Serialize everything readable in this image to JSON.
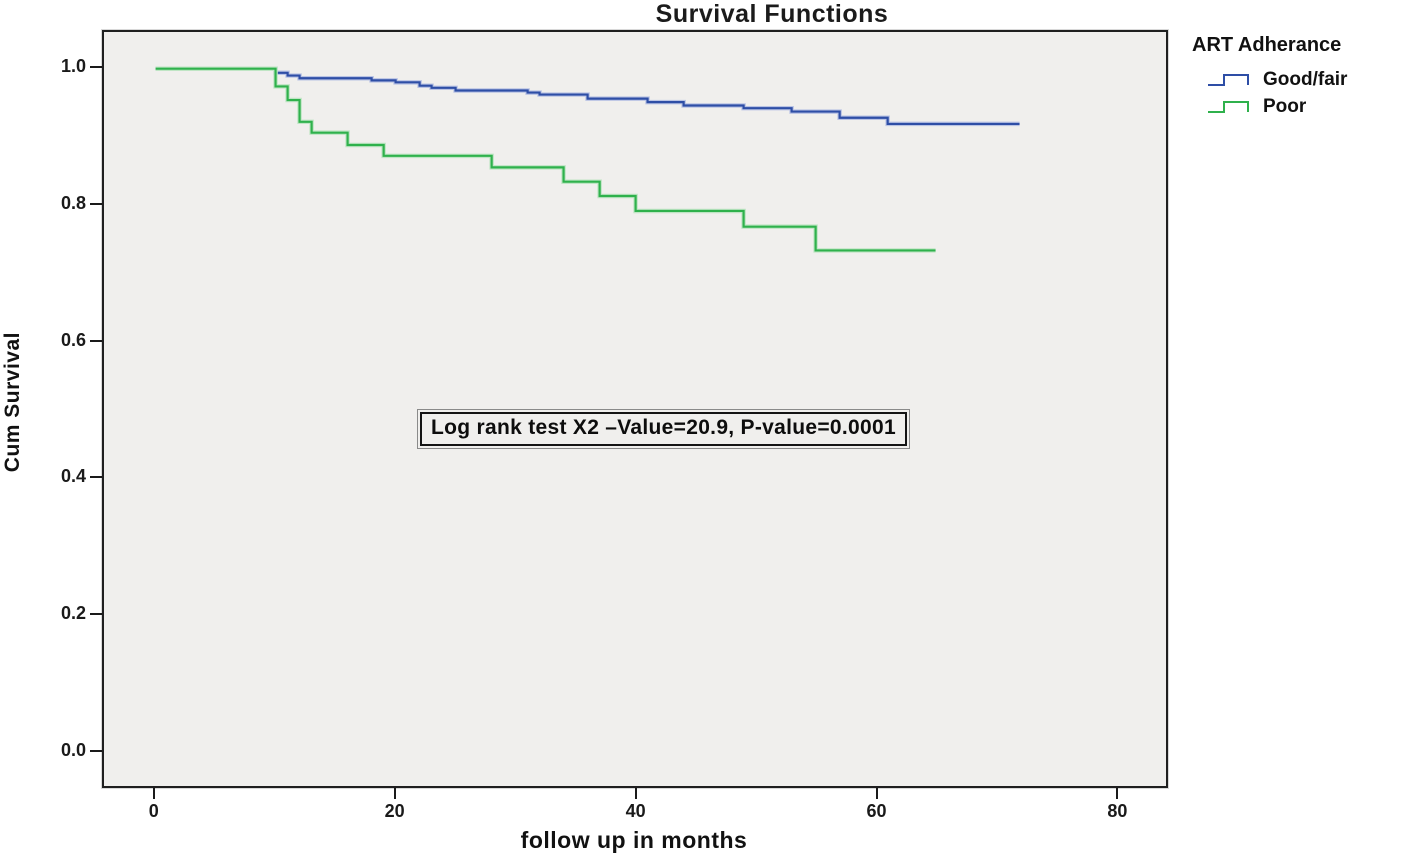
{
  "chart_data": {
    "type": "line",
    "subtype": "kaplan-meier-step",
    "title": "Survival Functions",
    "xlabel": "follow up in months",
    "ylabel": "Cum Survival",
    "x_ticks": [
      0,
      20,
      40,
      60,
      80
    ],
    "y_ticks": [
      0.0,
      0.2,
      0.4,
      0.6,
      0.8,
      1.0
    ],
    "xlim": [
      -4.3,
      84.2
    ],
    "ylim": [
      -0.054,
      1.054
    ],
    "grid": false,
    "plot_background": "#f0efed",
    "annotation": "Log rank test X2 –Value=20.9, P-value=0.0001",
    "legend": {
      "title": "ART Adherance",
      "position": "right",
      "entries": [
        {
          "name": "Good/fair",
          "color": "#2e4ea6"
        },
        {
          "name": "Poor",
          "color": "#2fb14c"
        }
      ]
    },
    "series": [
      {
        "name": "Good/fair",
        "color": "#2e4ea6",
        "halo": "#b9c3e4",
        "points": [
          [
            0,
            1.0
          ],
          [
            10,
            0.994
          ],
          [
            11,
            0.99
          ],
          [
            12,
            0.986
          ],
          [
            18,
            0.983
          ],
          [
            20,
            0.98
          ],
          [
            22,
            0.975
          ],
          [
            23,
            0.972
          ],
          [
            25,
            0.968
          ],
          [
            31,
            0.965
          ],
          [
            32,
            0.962
          ],
          [
            36,
            0.956
          ],
          [
            41,
            0.951
          ],
          [
            44,
            0.946
          ],
          [
            49,
            0.942
          ],
          [
            53,
            0.937
          ],
          [
            57,
            0.928
          ],
          [
            61,
            0.919
          ],
          [
            72,
            0.919
          ]
        ]
      },
      {
        "name": "Poor",
        "color": "#2fb14c",
        "halo": "#bfe5c4",
        "points": [
          [
            0,
            1.0
          ],
          [
            10,
            0.974
          ],
          [
            11,
            0.954
          ],
          [
            12,
            0.922
          ],
          [
            13,
            0.906
          ],
          [
            16,
            0.888
          ],
          [
            19,
            0.872
          ],
          [
            28,
            0.855
          ],
          [
            34,
            0.834
          ],
          [
            37,
            0.813
          ],
          [
            40,
            0.791
          ],
          [
            49,
            0.768
          ],
          [
            55,
            0.733
          ],
          [
            65,
            0.733
          ]
        ]
      }
    ]
  }
}
